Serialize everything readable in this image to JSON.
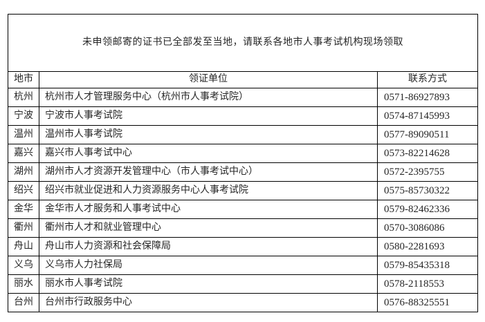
{
  "notice": "未申领邮寄的证书已全部发至当地，请联系各地市人事考试机构现场领取",
  "table": {
    "columns": [
      "地市",
      "领证单位",
      "联系方式"
    ],
    "rows": [
      {
        "city": "杭州",
        "unit": "杭州市人才管理服务中心（杭州市人事考试院）",
        "phone": "0571-86927893"
      },
      {
        "city": "宁波",
        "unit": "宁波市人事考试院",
        "phone": "0574-87145993"
      },
      {
        "city": "温州",
        "unit": "温州市人事考试院",
        "phone": "0577-89090511"
      },
      {
        "city": "嘉兴",
        "unit": "嘉兴市人事考试中心",
        "phone": "0573-82214628"
      },
      {
        "city": "湖州",
        "unit": "湖州市人才资源开发管理中心（市人事考试中心）",
        "phone": "0572-2395755"
      },
      {
        "city": "绍兴",
        "unit": "绍兴市就业促进和人力资源服务中心人事考试院",
        "phone": "0575-85730322"
      },
      {
        "city": "金华",
        "unit": "金华市人才服务和人事考试中心",
        "phone": "0579-82462336"
      },
      {
        "city": "衢州",
        "unit": "衢州市人才和就业管理中心",
        "phone": "0570-3086086"
      },
      {
        "city": "舟山",
        "unit": "舟山市人力资源和社会保障局",
        "phone": "0580-2281693"
      },
      {
        "city": "义乌",
        "unit": "义乌市人力社保局",
        "phone": "0579-85435318"
      },
      {
        "city": "丽水",
        "unit": "丽水市人事考试院",
        "phone": "0578-2118553"
      },
      {
        "city": "台州",
        "unit": "台州市行政服务中心",
        "phone": "0576-88325551"
      }
    ]
  },
  "colors": {
    "text": "#262626",
    "border": "#000000",
    "background": "#ffffff"
  }
}
